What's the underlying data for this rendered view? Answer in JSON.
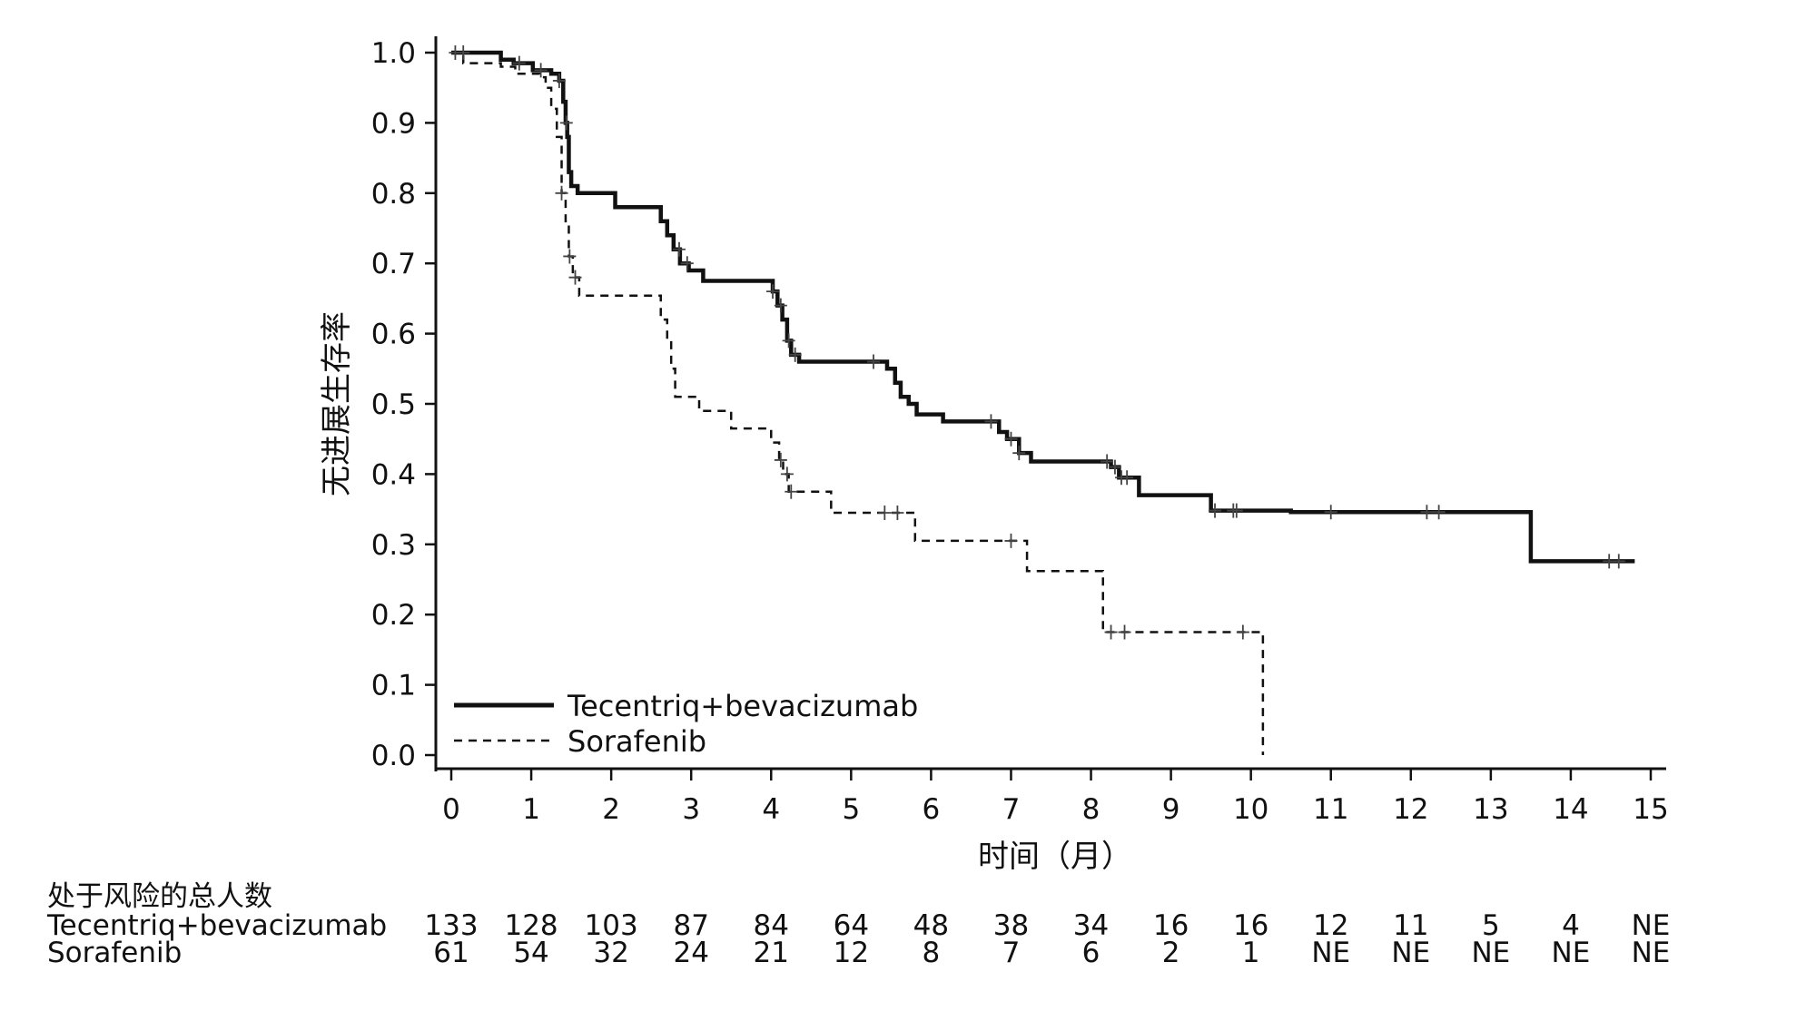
{
  "chart_data": {
    "type": "line",
    "title": "",
    "xlabel": "时间（月）",
    "ylabel": "无进展生存率",
    "xlim": [
      0,
      15
    ],
    "ylim": [
      0,
      1
    ],
    "x_ticks": [
      "0",
      "1",
      "2",
      "3",
      "4",
      "5",
      "6",
      "7",
      "8",
      "9",
      "10",
      "11",
      "12",
      "13",
      "14",
      "15"
    ],
    "y_ticks": [
      "0.0",
      "0.1",
      "0.2",
      "0.3",
      "0.4",
      "0.5",
      "0.6",
      "0.7",
      "0.8",
      "0.9",
      "1.0"
    ],
    "grid": false,
    "legend_position": "bottom-left",
    "series": [
      {
        "name": "Tecentriq+bevacizumab",
        "line_style": "solid",
        "color": "#111111",
        "steps": [
          [
            0,
            1.0
          ],
          [
            0.62,
            0.99
          ],
          [
            0.78,
            0.985
          ],
          [
            1.02,
            0.975
          ],
          [
            1.25,
            0.97
          ],
          [
            1.35,
            0.96
          ],
          [
            1.4,
            0.93
          ],
          [
            1.43,
            0.9
          ],
          [
            1.45,
            0.88
          ],
          [
            1.47,
            0.83
          ],
          [
            1.5,
            0.81
          ],
          [
            1.58,
            0.8
          ],
          [
            2.0,
            0.8
          ],
          [
            2.05,
            0.78
          ],
          [
            2.55,
            0.78
          ],
          [
            2.62,
            0.76
          ],
          [
            2.7,
            0.74
          ],
          [
            2.78,
            0.72
          ],
          [
            2.86,
            0.7
          ],
          [
            2.97,
            0.69
          ],
          [
            3.15,
            0.675
          ],
          [
            3.95,
            0.675
          ],
          [
            4.02,
            0.66
          ],
          [
            4.08,
            0.64
          ],
          [
            4.14,
            0.62
          ],
          [
            4.2,
            0.59
          ],
          [
            4.25,
            0.57
          ],
          [
            4.35,
            0.56
          ],
          [
            5.35,
            0.56
          ],
          [
            5.45,
            0.55
          ],
          [
            5.55,
            0.53
          ],
          [
            5.62,
            0.51
          ],
          [
            5.72,
            0.5
          ],
          [
            5.82,
            0.485
          ],
          [
            6.15,
            0.475
          ],
          [
            6.85,
            0.46
          ],
          [
            6.95,
            0.45
          ],
          [
            7.1,
            0.43
          ],
          [
            7.25,
            0.418
          ],
          [
            8.25,
            0.41
          ],
          [
            8.35,
            0.395
          ],
          [
            8.6,
            0.37
          ],
          [
            9.5,
            0.348
          ],
          [
            10.5,
            0.346
          ],
          [
            13.5,
            0.276
          ],
          [
            14.8,
            0.276
          ]
        ],
        "censor_times": [
          0.05,
          0.15,
          0.85,
          1.12,
          1.35,
          1.44,
          2.85,
          2.95,
          4.02,
          4.12,
          4.22,
          4.3,
          5.28,
          6.75,
          7.0,
          7.1,
          8.2,
          8.3,
          8.38,
          8.45,
          9.55,
          9.78,
          9.82,
          11.0,
          12.2,
          12.35,
          14.48,
          14.6
        ],
        "at_risk": [
          "133",
          "128",
          "103",
          "87",
          "84",
          "64",
          "48",
          "38",
          "34",
          "16",
          "16",
          "12",
          "11",
          "5",
          "4",
          "NE"
        ]
      },
      {
        "name": "Sorafenib",
        "line_style": "dashed",
        "color": "#111111",
        "steps": [
          [
            0,
            1.0
          ],
          [
            0.15,
            0.985
          ],
          [
            0.62,
            0.98
          ],
          [
            0.8,
            0.97
          ],
          [
            1.1,
            0.965
          ],
          [
            1.18,
            0.95
          ],
          [
            1.25,
            0.92
          ],
          [
            1.32,
            0.88
          ],
          [
            1.38,
            0.8
          ],
          [
            1.43,
            0.76
          ],
          [
            1.47,
            0.71
          ],
          [
            1.52,
            0.68
          ],
          [
            1.6,
            0.654
          ],
          [
            2.55,
            0.654
          ],
          [
            2.62,
            0.62
          ],
          [
            2.7,
            0.59
          ],
          [
            2.75,
            0.55
          ],
          [
            2.8,
            0.51
          ],
          [
            3.1,
            0.49
          ],
          [
            3.5,
            0.465
          ],
          [
            4.0,
            0.445
          ],
          [
            4.1,
            0.42
          ],
          [
            4.15,
            0.4
          ],
          [
            4.22,
            0.375
          ],
          [
            4.75,
            0.345
          ],
          [
            5.8,
            0.305
          ],
          [
            7.2,
            0.262
          ],
          [
            8.15,
            0.175
          ],
          [
            10.15,
            0.0
          ]
        ],
        "censor_times": [
          1.38,
          1.48,
          1.55,
          4.12,
          4.2,
          4.25,
          5.42,
          5.58,
          7.0,
          8.25,
          8.42,
          9.9
        ],
        "at_risk": [
          "61",
          "54",
          "32",
          "24",
          "21",
          "12",
          "8",
          "7",
          "6",
          "2",
          "1",
          "NE",
          "NE",
          "NE",
          "NE",
          "NE"
        ]
      }
    ],
    "risk_table": {
      "title": "处于风险的总人数",
      "times": [
        "0",
        "1",
        "2",
        "3",
        "4",
        "5",
        "6",
        "7",
        "8",
        "9",
        "10",
        "11",
        "12",
        "13",
        "14",
        "15"
      ]
    }
  }
}
